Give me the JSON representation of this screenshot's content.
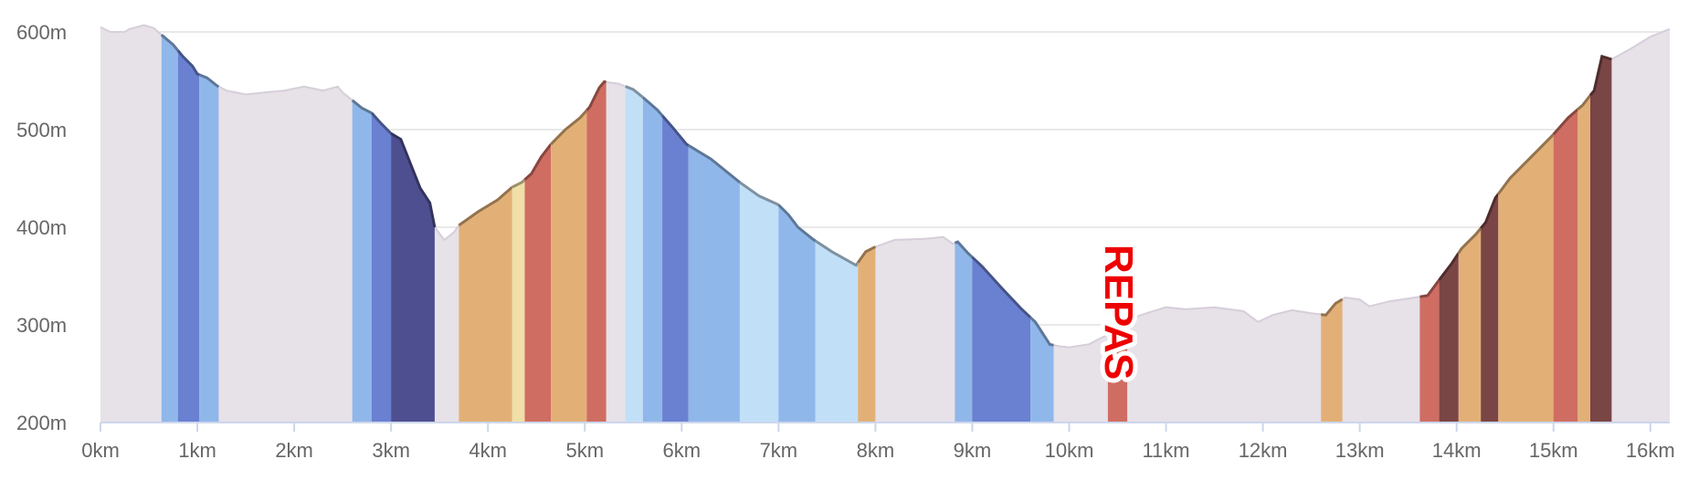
{
  "chart_data": {
    "type": "area",
    "x_unit": "km",
    "y_unit": "m",
    "xlim": [
      0,
      16.2
    ],
    "ylim": [
      200,
      600
    ],
    "grid": true,
    "y_ticks": [
      "200m",
      "300m",
      "400m",
      "500m",
      "600m"
    ],
    "x_ticks": [
      "0km",
      "1km",
      "2km",
      "3km",
      "4km",
      "5km",
      "6km",
      "7km",
      "8km",
      "9km",
      "10km",
      "11km",
      "12km",
      "13km",
      "14km",
      "15km",
      "16km"
    ],
    "profile": [
      [
        0.0,
        605
      ],
      [
        0.1,
        600
      ],
      [
        0.25,
        600
      ],
      [
        0.3,
        603
      ],
      [
        0.45,
        607
      ],
      [
        0.55,
        604
      ],
      [
        0.63,
        597
      ],
      [
        0.75,
        587
      ],
      [
        0.85,
        575
      ],
      [
        0.95,
        565
      ],
      [
        1.0,
        557
      ],
      [
        1.1,
        553
      ],
      [
        1.2,
        545
      ],
      [
        1.3,
        540
      ],
      [
        1.5,
        536
      ],
      [
        1.7,
        538
      ],
      [
        1.9,
        540
      ],
      [
        2.1,
        544
      ],
      [
        2.3,
        540
      ],
      [
        2.45,
        544
      ],
      [
        2.5,
        538
      ],
      [
        2.6,
        530
      ],
      [
        2.7,
        522
      ],
      [
        2.8,
        517
      ],
      [
        2.9,
        506
      ],
      [
        3.0,
        496
      ],
      [
        3.1,
        490
      ],
      [
        3.2,
        465
      ],
      [
        3.3,
        440
      ],
      [
        3.4,
        425
      ],
      [
        3.45,
        400
      ],
      [
        3.55,
        387
      ],
      [
        3.65,
        395
      ],
      [
        3.7,
        402
      ],
      [
        3.9,
        416
      ],
      [
        4.1,
        428
      ],
      [
        4.25,
        441
      ],
      [
        4.35,
        446
      ],
      [
        4.45,
        455
      ],
      [
        4.55,
        472
      ],
      [
        4.65,
        485
      ],
      [
        4.8,
        500
      ],
      [
        4.95,
        512
      ],
      [
        5.05,
        523
      ],
      [
        5.15,
        543
      ],
      [
        5.2,
        549
      ],
      [
        5.35,
        547
      ],
      [
        5.5,
        541
      ],
      [
        5.6,
        533
      ],
      [
        5.75,
        520
      ],
      [
        5.9,
        503
      ],
      [
        6.05,
        485
      ],
      [
        6.3,
        470
      ],
      [
        6.6,
        446
      ],
      [
        6.8,
        432
      ],
      [
        7.0,
        423
      ],
      [
        7.1,
        413
      ],
      [
        7.2,
        400
      ],
      [
        7.35,
        388
      ],
      [
        7.55,
        375
      ],
      [
        7.8,
        361
      ],
      [
        7.9,
        375
      ],
      [
        8.0,
        380
      ],
      [
        8.2,
        387
      ],
      [
        8.5,
        388
      ],
      [
        8.7,
        390
      ],
      [
        8.8,
        383
      ],
      [
        8.85,
        385
      ],
      [
        8.95,
        374
      ],
      [
        9.1,
        360
      ],
      [
        9.3,
        338
      ],
      [
        9.5,
        317
      ],
      [
        9.65,
        303
      ],
      [
        9.8,
        280
      ],
      [
        9.9,
        278
      ],
      [
        10.0,
        277
      ],
      [
        10.2,
        280
      ],
      [
        10.4,
        290
      ],
      [
        10.6,
        305
      ],
      [
        10.8,
        312
      ],
      [
        11.0,
        318
      ],
      [
        11.2,
        316
      ],
      [
        11.5,
        318
      ],
      [
        11.8,
        314
      ],
      [
        11.95,
        303
      ],
      [
        12.1,
        310
      ],
      [
        12.3,
        315
      ],
      [
        12.5,
        312
      ],
      [
        12.65,
        310
      ],
      [
        12.75,
        322
      ],
      [
        12.85,
        328
      ],
      [
        13.0,
        326
      ],
      [
        13.1,
        319
      ],
      [
        13.3,
        324
      ],
      [
        13.5,
        327
      ],
      [
        13.7,
        330
      ],
      [
        13.85,
        350
      ],
      [
        13.95,
        363
      ],
      [
        14.05,
        378
      ],
      [
        14.2,
        393
      ],
      [
        14.3,
        405
      ],
      [
        14.4,
        430
      ],
      [
        14.55,
        450
      ],
      [
        14.7,
        465
      ],
      [
        14.85,
        480
      ],
      [
        15.0,
        495
      ],
      [
        15.15,
        512
      ],
      [
        15.3,
        525
      ],
      [
        15.42,
        540
      ],
      [
        15.5,
        575
      ],
      [
        15.6,
        572
      ],
      [
        15.8,
        583
      ],
      [
        16.0,
        595
      ],
      [
        16.2,
        603
      ]
    ],
    "segments": [
      {
        "from": 0.63,
        "to": 0.8,
        "color": "#8fb7ea"
      },
      {
        "from": 0.8,
        "to": 1.02,
        "color": "#6a80d0"
      },
      {
        "from": 1.02,
        "to": 1.22,
        "color": "#8fb7ea"
      },
      {
        "from": 2.6,
        "to": 2.8,
        "color": "#8fb7ea"
      },
      {
        "from": 2.8,
        "to": 3.0,
        "color": "#6a80d0"
      },
      {
        "from": 3.0,
        "to": 3.45,
        "color": "#4e4f90"
      },
      {
        "from": 3.7,
        "to": 4.25,
        "color": "#e2b077"
      },
      {
        "from": 4.25,
        "to": 4.38,
        "color": "#f0dfa7"
      },
      {
        "from": 4.38,
        "to": 4.65,
        "color": "#cf6d63"
      },
      {
        "from": 4.65,
        "to": 5.02,
        "color": "#e2b077"
      },
      {
        "from": 5.02,
        "to": 5.22,
        "color": "#cf6d63"
      },
      {
        "from": 5.42,
        "to": 5.6,
        "color": "#c2dff8"
      },
      {
        "from": 5.6,
        "to": 5.8,
        "color": "#8fb7ea"
      },
      {
        "from": 5.8,
        "to": 6.07,
        "color": "#6a80d0"
      },
      {
        "from": 6.07,
        "to": 6.6,
        "color": "#8fb7ea"
      },
      {
        "from": 6.6,
        "to": 7.0,
        "color": "#c2dff8"
      },
      {
        "from": 7.0,
        "to": 7.38,
        "color": "#8fb7ea"
      },
      {
        "from": 7.38,
        "to": 7.82,
        "color": "#c2dff8"
      },
      {
        "from": 7.82,
        "to": 8.0,
        "color": "#e2b077"
      },
      {
        "from": 8.82,
        "to": 9.0,
        "color": "#8fb7ea"
      },
      {
        "from": 9.0,
        "to": 9.6,
        "color": "#6a80d0"
      },
      {
        "from": 9.6,
        "to": 9.84,
        "color": "#8fb7ea"
      },
      {
        "from": 10.4,
        "to": 10.6,
        "color": "#cf6d63"
      },
      {
        "from": 12.6,
        "to": 12.82,
        "color": "#e2b077"
      },
      {
        "from": 13.62,
        "to": 13.82,
        "color": "#cf6d63"
      },
      {
        "from": 13.82,
        "to": 14.02,
        "color": "#7a4545"
      },
      {
        "from": 14.02,
        "to": 14.25,
        "color": "#e2b077"
      },
      {
        "from": 14.25,
        "to": 14.43,
        "color": "#7a4545"
      },
      {
        "from": 14.43,
        "to": 15.0,
        "color": "#e2b077"
      },
      {
        "from": 15.0,
        "to": 15.25,
        "color": "#cf6d63"
      },
      {
        "from": 15.25,
        "to": 15.38,
        "color": "#e2b077"
      },
      {
        "from": 15.38,
        "to": 15.6,
        "color": "#7a4545"
      }
    ],
    "annotations": [
      {
        "text": "REPAS",
        "x": 10.4,
        "y": 313,
        "color": "#ee0000",
        "orientation": "vertical"
      }
    ]
  },
  "colors": {
    "base_fill": "#e7e1e8",
    "base_line": "#d6ced9",
    "grid": "#e2e2e2",
    "axis": "#ccd6eb",
    "text": "#666666"
  }
}
